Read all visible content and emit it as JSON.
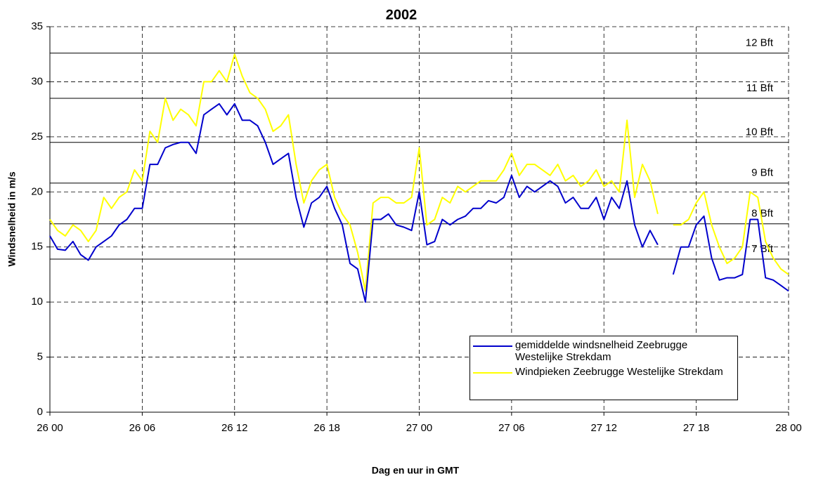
{
  "chart_data": {
    "type": "line",
    "title": "2002",
    "x_label": "Dag en uur in GMT",
    "y_label": "Windsnelheid in m/s",
    "x": [
      0,
      0.5,
      1,
      1.5,
      2,
      2.5,
      3,
      3.5,
      4,
      4.5,
      5,
      5.5,
      6,
      6.5,
      7,
      7.5,
      8,
      8.5,
      9,
      9.5,
      10,
      10.5,
      11,
      11.5,
      12,
      12.5,
      13,
      13.5,
      14,
      14.5,
      15,
      15.5,
      16,
      16.5,
      17,
      17.5,
      18,
      18.5,
      19,
      19.5,
      20,
      20.5,
      21,
      21.5,
      22,
      22.5,
      23,
      23.5,
      24,
      24.5,
      25,
      25.5,
      26,
      26.5,
      27,
      27.5,
      28,
      28.5,
      29,
      29.5,
      30,
      30.5,
      31,
      31.5,
      32,
      32.5,
      33,
      33.5,
      34,
      34.5,
      35,
      35.5,
      36,
      36.5,
      37,
      37.5,
      38,
      38.5,
      39,
      39.5,
      40,
      40.5,
      41,
      41.5,
      42,
      42.5,
      43,
      43.5,
      44,
      44.5,
      45,
      45.5,
      46,
      46.5,
      47,
      47.5,
      48
    ],
    "series": [
      {
        "name": "gemiddelde windsnelheid Zeebrugge Westelijke Strekdam",
        "color": "#0000cc",
        "values": [
          16,
          14.8,
          14.7,
          15.5,
          14.3,
          13.8,
          15,
          15.5,
          16,
          17,
          17.5,
          18.5,
          18.5,
          22.5,
          22.5,
          24,
          24.3,
          24.5,
          24.5,
          23.5,
          27,
          27.5,
          28,
          27,
          28,
          26.5,
          26.5,
          26,
          24.5,
          22.5,
          23,
          23.5,
          19.5,
          16.8,
          19,
          19.5,
          20.5,
          18.5,
          17,
          13.5,
          13,
          10,
          17.5,
          17.5,
          18,
          17,
          16.8,
          16.5,
          20,
          15.2,
          15.5,
          17.5,
          17,
          17.5,
          17.8,
          18.5,
          18.5,
          19.2,
          19,
          19.5,
          21.5,
          19.5,
          20.5,
          20,
          20.5,
          21,
          20.5,
          19,
          19.5,
          18.5,
          18.5,
          19.5,
          17.5,
          19.5,
          18.5,
          21,
          17,
          15,
          16.5,
          15.2,
          null,
          12.5,
          15,
          15,
          17,
          17.8,
          14,
          12,
          12.2,
          12.2,
          12.5,
          17.5,
          17.5,
          12.2,
          12,
          11.5,
          11
        ]
      },
      {
        "name": "Windpieken Zeebrugge Westelijke Strekdam",
        "color": "#ffff00",
        "values": [
          17.5,
          16.5,
          16,
          17,
          16.5,
          15.5,
          16.5,
          19.5,
          18.5,
          19.5,
          20,
          22,
          21,
          25.5,
          24.5,
          28.5,
          26.5,
          27.5,
          27,
          26,
          30,
          30,
          31,
          30,
          32.5,
          30.5,
          29,
          28.5,
          27.5,
          25.5,
          26,
          27,
          22.5,
          19,
          21,
          22,
          22.5,
          19.5,
          18,
          17,
          14.5,
          11,
          19,
          19.5,
          19.5,
          19,
          19,
          19.5,
          24,
          17,
          17.5,
          19.5,
          19,
          20.5,
          20,
          20.5,
          21,
          21,
          21,
          22,
          23.5,
          21.5,
          22.5,
          22.5,
          22,
          21.5,
          22.5,
          21,
          21.5,
          20.5,
          21,
          22,
          20.5,
          21,
          20,
          26.5,
          19.5,
          22.5,
          21,
          18,
          null,
          17,
          17,
          17.5,
          19,
          20,
          17,
          15,
          13.5,
          14,
          15,
          20,
          19.5,
          15.5,
          14,
          13,
          12.5
        ]
      }
    ],
    "xlim": [
      0,
      48
    ],
    "xticks": [
      {
        "value": 0,
        "label": "26 00"
      },
      {
        "value": 6,
        "label": "26 06"
      },
      {
        "value": 12,
        "label": "26 12"
      },
      {
        "value": 18,
        "label": "26 18"
      },
      {
        "value": 24,
        "label": "27 00"
      },
      {
        "value": 30,
        "label": "27 06"
      },
      {
        "value": 36,
        "label": "27 12"
      },
      {
        "value": 42,
        "label": "27 18"
      },
      {
        "value": 48,
        "label": "28 00"
      }
    ],
    "ylim": [
      0,
      35
    ],
    "yticks": [
      0,
      5,
      10,
      15,
      20,
      25,
      30,
      35
    ],
    "grid": true,
    "reference_lines": [
      {
        "label": "12 Bft",
        "value": 32.6
      },
      {
        "label": "11 Bft",
        "value": 28.5
      },
      {
        "label": "10 Bft",
        "value": 24.5
      },
      {
        "label": "9 Bft",
        "value": 20.8
      },
      {
        "label": "8 Bft",
        "value": 17.1
      },
      {
        "label": "7 Bft",
        "value": 13.9
      }
    ]
  }
}
